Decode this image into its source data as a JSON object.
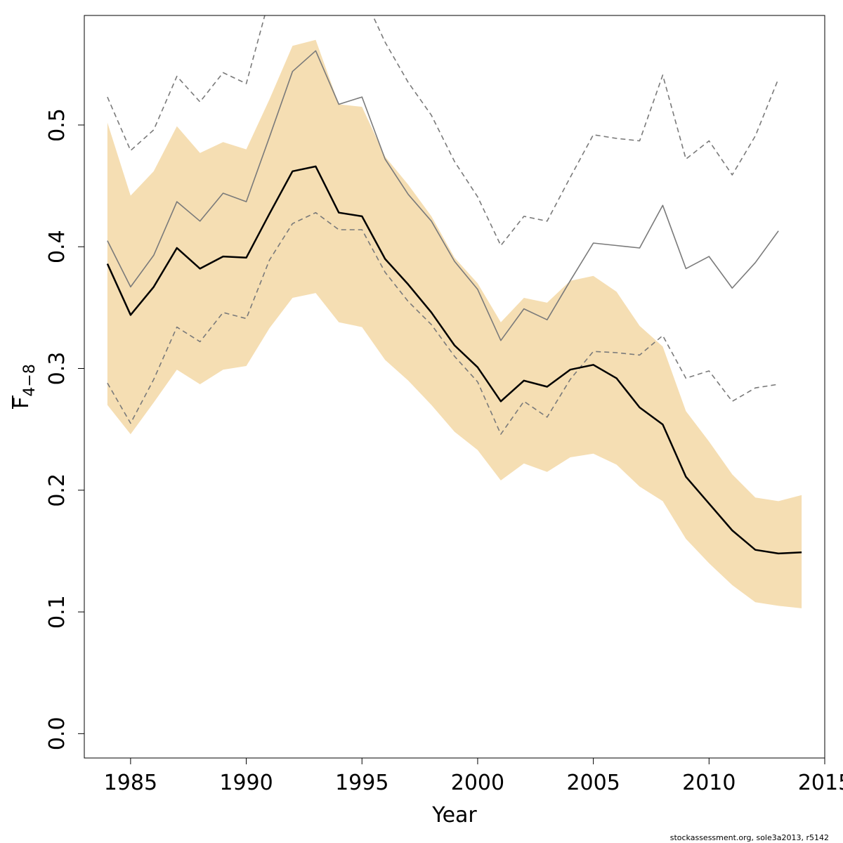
{
  "chart_data": {
    "type": "line",
    "xlabel": "Year",
    "ylabel_main": "F",
    "ylabel_sub": "4−8",
    "xlim": [
      1983,
      2015
    ],
    "ylim": [
      -0.02,
      0.59
    ],
    "x_ticks": [
      1985,
      1990,
      1995,
      2000,
      2005,
      2010,
      2015
    ],
    "x_tick_labels": [
      "1985",
      "1990",
      "1995",
      "2000",
      "2005",
      "2010",
      "2015"
    ],
    "y_ticks": [
      0.0,
      0.1,
      0.2,
      0.3,
      0.4,
      0.5
    ],
    "y_tick_labels": [
      "0.0",
      "0.1",
      "0.2",
      "0.3",
      "0.4",
      "0.5"
    ],
    "colors": {
      "band": "#f5deb3",
      "main": "#000000",
      "previous": "#7a7a7a"
    },
    "band": {
      "years": [
        1984,
        1985,
        1986,
        1987,
        1988,
        1989,
        1990,
        1991,
        1992,
        1993,
        1994,
        1995,
        1996,
        1997,
        1998,
        1999,
        2000,
        2001,
        2002,
        2003,
        2004,
        2005,
        2006,
        2007,
        2008,
        2009,
        2010,
        2011,
        2012,
        2013,
        2014
      ],
      "upper": [
        0.502,
        0.442,
        0.462,
        0.499,
        0.477,
        0.486,
        0.48,
        0.521,
        0.565,
        0.57,
        0.517,
        0.515,
        0.474,
        0.451,
        0.425,
        0.391,
        0.37,
        0.338,
        0.358,
        0.354,
        0.372,
        0.376,
        0.363,
        0.335,
        0.318,
        0.265,
        0.24,
        0.213,
        0.194,
        0.191,
        0.196
      ],
      "lower": [
        0.27,
        0.246,
        0.272,
        0.299,
        0.287,
        0.299,
        0.302,
        0.333,
        0.358,
        0.362,
        0.338,
        0.334,
        0.307,
        0.29,
        0.27,
        0.248,
        0.233,
        0.208,
        0.222,
        0.215,
        0.227,
        0.23,
        0.221,
        0.203,
        0.191,
        0.16,
        0.14,
        0.122,
        0.108,
        0.105,
        0.103
      ]
    },
    "series": [
      {
        "style": "solid-thick",
        "x": [
          1984,
          1985,
          1986,
          1987,
          1988,
          1989,
          1990,
          1991,
          1992,
          1993,
          1994,
          1995,
          1996,
          1997,
          1998,
          1999,
          2000,
          2001,
          2002,
          2003,
          2004,
          2005,
          2006,
          2007,
          2008,
          2009,
          2010,
          2011,
          2012,
          2013,
          2014
        ],
        "y": [
          0.386,
          0.344,
          0.367,
          0.399,
          0.382,
          0.392,
          0.391,
          0.427,
          0.462,
          0.466,
          0.428,
          0.425,
          0.39,
          0.369,
          0.346,
          0.319,
          0.301,
          0.273,
          0.29,
          0.285,
          0.299,
          0.303,
          0.292,
          0.268,
          0.254,
          0.211,
          0.189,
          0.167,
          0.151,
          0.148,
          0.149
        ]
      },
      {
        "style": "solid-gray",
        "x": [
          1984,
          1985,
          1986,
          1987,
          1988,
          1989,
          1990,
          1991,
          1992,
          1993,
          1994,
          1995,
          1996,
          1997,
          1998,
          1999,
          2000,
          2001,
          2002,
          2003,
          2004,
          2005,
          2006,
          2007,
          2008,
          2009,
          2010,
          2011,
          2012,
          2013
        ],
        "y": [
          0.405,
          0.367,
          0.393,
          0.437,
          0.421,
          0.444,
          0.437,
          0.49,
          0.544,
          0.561,
          0.517,
          0.523,
          0.472,
          0.443,
          0.421,
          0.388,
          0.365,
          0.323,
          0.349,
          0.34,
          0.372,
          0.403,
          0.401,
          0.399,
          0.434,
          0.382,
          0.392,
          0.366,
          0.387,
          0.413
        ]
      },
      {
        "style": "dashed-upper",
        "x": [
          1984,
          1985,
          1986,
          1987,
          1988,
          1989,
          1990,
          1991,
          1995,
          1996,
          1997,
          1998,
          1999,
          2000,
          2001,
          2002,
          2003,
          2004,
          2005,
          2006,
          2007,
          2008,
          2009,
          2010,
          2011,
          2012,
          2013
        ],
        "y": [
          0.523,
          0.479,
          0.496,
          0.54,
          0.519,
          0.543,
          0.534,
          0.604,
          0.609,
          0.568,
          0.535,
          0.508,
          0.47,
          0.441,
          0.401,
          0.425,
          0.421,
          0.457,
          0.492,
          0.489,
          0.487,
          0.541,
          0.472,
          0.487,
          0.459,
          0.491,
          0.538
        ]
      },
      {
        "style": "dashed-lower",
        "x": [
          1984,
          1985,
          1986,
          1987,
          1988,
          1989,
          1990,
          1991,
          1992,
          1993,
          1994,
          1995,
          1996,
          1997,
          1998,
          1999,
          2000,
          2001,
          2002,
          2003,
          2004,
          2005,
          2006,
          2007,
          2008,
          2009,
          2010,
          2011,
          2012,
          2013
        ],
        "y": [
          0.288,
          0.255,
          0.291,
          0.334,
          0.322,
          0.346,
          0.341,
          0.389,
          0.419,
          0.428,
          0.414,
          0.414,
          0.379,
          0.355,
          0.336,
          0.31,
          0.289,
          0.246,
          0.273,
          0.26,
          0.291,
          0.314,
          0.313,
          0.311,
          0.327,
          0.292,
          0.298,
          0.273,
          0.284,
          0.287
        ]
      }
    ]
  },
  "footnote": "stockassessment.org, sole3a2013, r5142"
}
